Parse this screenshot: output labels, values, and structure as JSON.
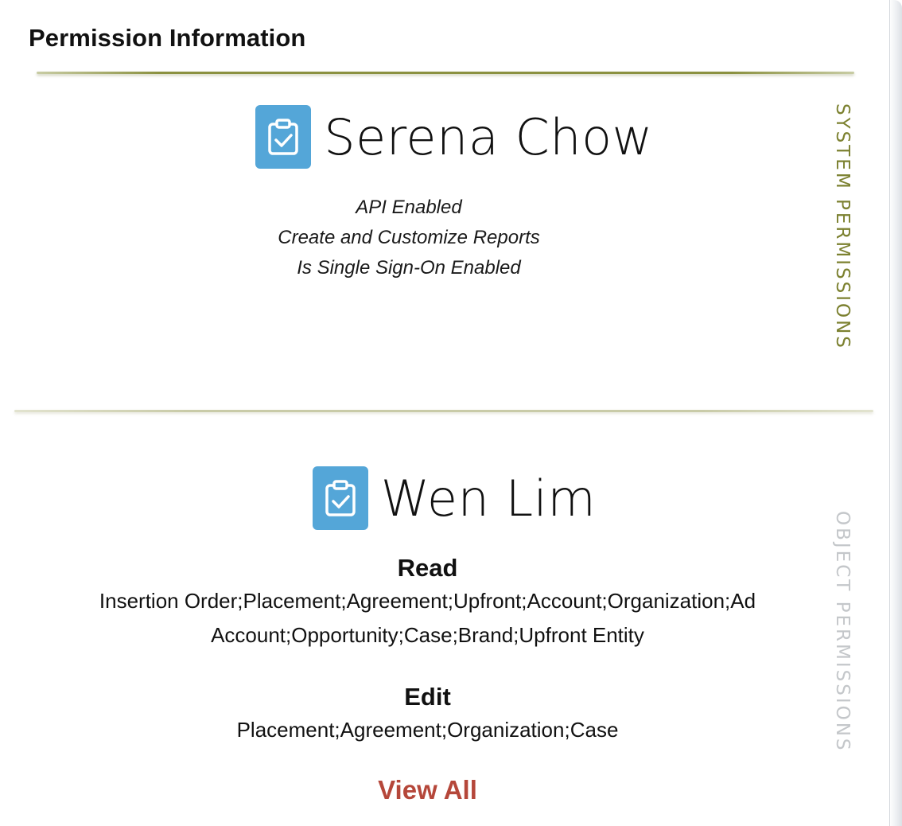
{
  "card": {
    "title": "Permission Information"
  },
  "colors": {
    "accent_olive": "#7c8130",
    "inactive_tab": "#c4c7ca",
    "link_red": "#b5473a",
    "icon_blue": "#54a6d8"
  },
  "system_section": {
    "tab_label": "SYSTEM PERMISSIONS",
    "person": {
      "name": "Serena Chow",
      "icon": "clipboard-check-icon"
    },
    "permissions": [
      "API Enabled",
      "Create and Customize Reports",
      "Is Single Sign-On Enabled"
    ]
  },
  "object_section": {
    "tab_label": "OBJECT PERMISSIONS",
    "person": {
      "name": "Wen Lim",
      "icon": "clipboard-check-icon"
    },
    "read": {
      "heading": "Read",
      "objects": "Insertion Order;Placement;Agreement;Upfront;Account;Organization;Ad Account;Opportunity;Case;Brand;Upfront Entity"
    },
    "edit": {
      "heading": "Edit",
      "objects": "Placement;Agreement;Organization;Case"
    },
    "view_all_label": "View All"
  }
}
